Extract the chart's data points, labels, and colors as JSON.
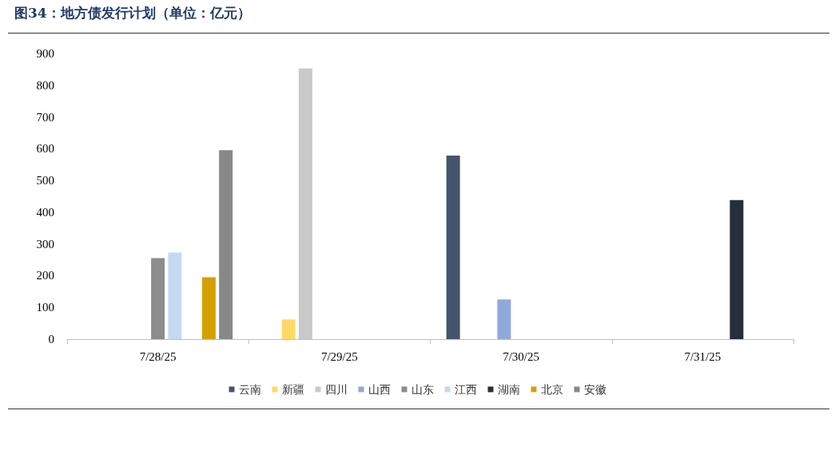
{
  "chart_data": {
    "type": "bar",
    "title": "图34：地方债发行计划（单位：亿元）",
    "categories": [
      "7/28/25",
      "7/29/25",
      "7/30/25",
      "7/31/25"
    ],
    "series": [
      {
        "name": "云南",
        "color": "#44546a",
        "values": [
          null,
          null,
          578,
          null
        ]
      },
      {
        "name": "新疆",
        "color": "#ffd966",
        "values": [
          null,
          62,
          null,
          null
        ]
      },
      {
        "name": "四川",
        "color": "#c9c9c9",
        "values": [
          null,
          853,
          null,
          null
        ]
      },
      {
        "name": "山西",
        "color": "#8eaadb",
        "values": [
          null,
          null,
          125,
          null
        ]
      },
      {
        "name": "山东",
        "color": "#8c8c8c",
        "values": [
          255,
          null,
          null,
          null
        ]
      },
      {
        "name": "江西",
        "color": "#c5d9f1",
        "values": [
          273,
          null,
          null,
          null
        ]
      },
      {
        "name": "湖南",
        "color": "#262d3b",
        "values": [
          null,
          null,
          null,
          438
        ]
      },
      {
        "name": "北京",
        "color": "#d4a000",
        "values": [
          195,
          null,
          null,
          null
        ]
      },
      {
        "name": "安徽",
        "color": "#888888",
        "values": [
          595,
          null,
          null,
          null
        ]
      }
    ],
    "ylim": [
      0,
      900
    ],
    "yticks": [
      0,
      100,
      200,
      300,
      400,
      500,
      600,
      700,
      800,
      900
    ],
    "grid": false,
    "legend": "bottom"
  }
}
